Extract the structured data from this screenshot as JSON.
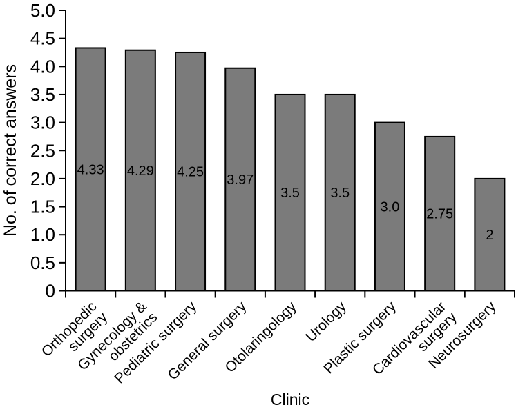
{
  "chart_data": {
    "type": "bar",
    "title": "",
    "xlabel": "Clinic",
    "ylabel": "No. of correct answers",
    "categories": [
      "Orthopedic\nsurgery",
      "Gynecology &\nobstetrics",
      "Pediatric surgery",
      "General surgery",
      "Otolaringology",
      "Urology",
      "Plastic surgery",
      "Cardiovascular\nsurgery",
      "Neurosurgery"
    ],
    "values": [
      4.33,
      4.29,
      4.25,
      3.97,
      3.5,
      3.5,
      3.0,
      2.75,
      2
    ],
    "value_labels": [
      "4.33",
      "4.29",
      "4.25",
      "3.97",
      "3.5",
      "3.5",
      "3.0",
      "2.75",
      "2"
    ],
    "ylim": [
      0,
      5
    ],
    "ytick_values": [
      0,
      0.5,
      1,
      1.5,
      2,
      2.5,
      3,
      3.5,
      4,
      4.5,
      5
    ],
    "ytick_labels": [
      "0",
      "0.5",
      "1.0",
      "1.5",
      "2.0",
      "2.5",
      "3.0",
      "3.5",
      "4.0",
      "4.5",
      "5.0"
    ],
    "grid": false,
    "legend": null,
    "bar_color": "#7b7b7b",
    "bar_border_color": "#000000",
    "axis_color": "#000000",
    "text_color": "#000000",
    "background_color": "#ffffff"
  }
}
